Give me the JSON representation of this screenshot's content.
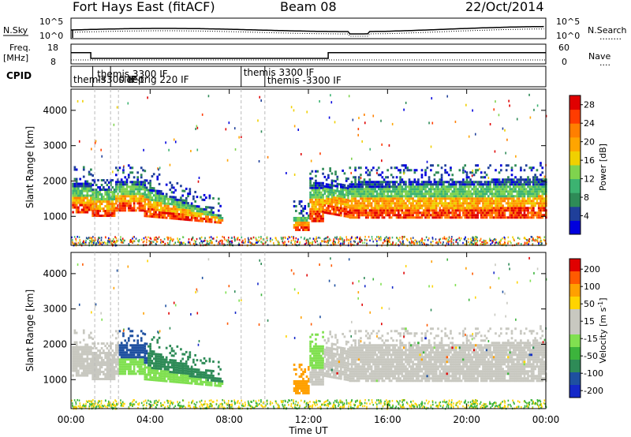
{
  "header": {
    "title": "Fort Hays East (fitACF)",
    "beam": "Beam 08",
    "date": "22/Oct/2014"
  },
  "summary_panels": {
    "nsky_label": "N.Sky",
    "nsearch_label": "N.Search",
    "nsearch_dots": "........",
    "freq_label": "Freq.",
    "freq_unit": "[MHz]",
    "nave_label": "Nave",
    "nave_dots": "....",
    "cpid_label": "CPID",
    "noise_ticks_left": [
      "10^5",
      "10^0"
    ],
    "noise_ticks_right": [
      "10^5",
      "10^0"
    ],
    "freq_ticks_left": [
      "18",
      "8"
    ],
    "nave_ticks_right": [
      "60",
      "0"
    ]
  },
  "cpid": [
    {
      "label": "themis",
      "start_h": 0.0
    },
    {
      "label": "themis  3300 IF",
      "start_h": 1.2
    },
    {
      "label": "-3300 IF",
      "start_h": 1.2
    },
    {
      "label": "sleep",
      "start_h": 2.3
    },
    {
      "label": "IF-trig 220 IF",
      "start_h": 2.8
    },
    {
      "label": "themis  3300 IF",
      "start_h": 8.6
    },
    {
      "label": "themis  -3300 IF",
      "start_h": 9.8
    }
  ],
  "colors": {
    "power": [
      "#0000dd",
      "#1f3f9a",
      "#2e8b57",
      "#3cb371",
      "#7fd34e",
      "#f0d000",
      "#ffa500",
      "#ff7f00",
      "#ff3c00",
      "#e00000"
    ],
    "velocity": [
      "#e00000",
      "#ff5a00",
      "#ffa000",
      "#ffd400",
      "#c8c8c0",
      "#c8c8c0",
      "#80e050",
      "#3cb43c",
      "#2e8b57",
      "#1e50a0",
      "#1428c8"
    ],
    "ground_scatter": "#c8c8c0"
  },
  "chart_data": {
    "type": "heatmap",
    "x": {
      "label": "Time UT",
      "range_h": [
        0,
        24
      ],
      "ticks": [
        "00:00",
        "04:00",
        "08:00",
        "12:00",
        "16:00",
        "20:00",
        "00:00"
      ]
    },
    "y": {
      "label": "Slant Range [km]",
      "range_km": [
        180,
        4600
      ],
      "ticks": [
        "1000",
        "2000",
        "3000",
        "4000"
      ]
    },
    "power_colorbar": {
      "label": "Power [dB]",
      "ticks": [
        "4",
        "8",
        "12",
        "16",
        "20",
        "24",
        "28"
      ],
      "range": [
        0,
        30
      ]
    },
    "velocity_colorbar": {
      "label": "Velocity [m s",
      "label_sup": "-1",
      "label_close": "]",
      "ticks": [
        "200",
        "100",
        "50",
        "15",
        "-15",
        "-50",
        "-100",
        "-200"
      ]
    },
    "cpid_boundaries_h": [
      1.2,
      2.0,
      2.4,
      8.6,
      9.8
    ],
    "frequency_steps_mhz": [
      {
        "from_h": 0.0,
        "to_h": 1.0,
        "value": 13.5
      },
      {
        "from_h": 1.0,
        "to_h": 13.0,
        "value": 10.5
      },
      {
        "from_h": 13.0,
        "to_h": 24.0,
        "value": 13.5
      }
    ],
    "scatter_regions": [
      {
        "from_h": 0.0,
        "to_h": 7.6,
        "range_km": [
          900,
          2000
        ],
        "kind": "ionospheric"
      },
      {
        "from_h": 11.2,
        "to_h": 12.6,
        "range_km": [
          600,
          1200
        ],
        "kind": "ionospheric"
      },
      {
        "from_h": 12.5,
        "to_h": 24.0,
        "range_km": [
          900,
          2100
        ],
        "kind": "mixed"
      }
    ]
  }
}
